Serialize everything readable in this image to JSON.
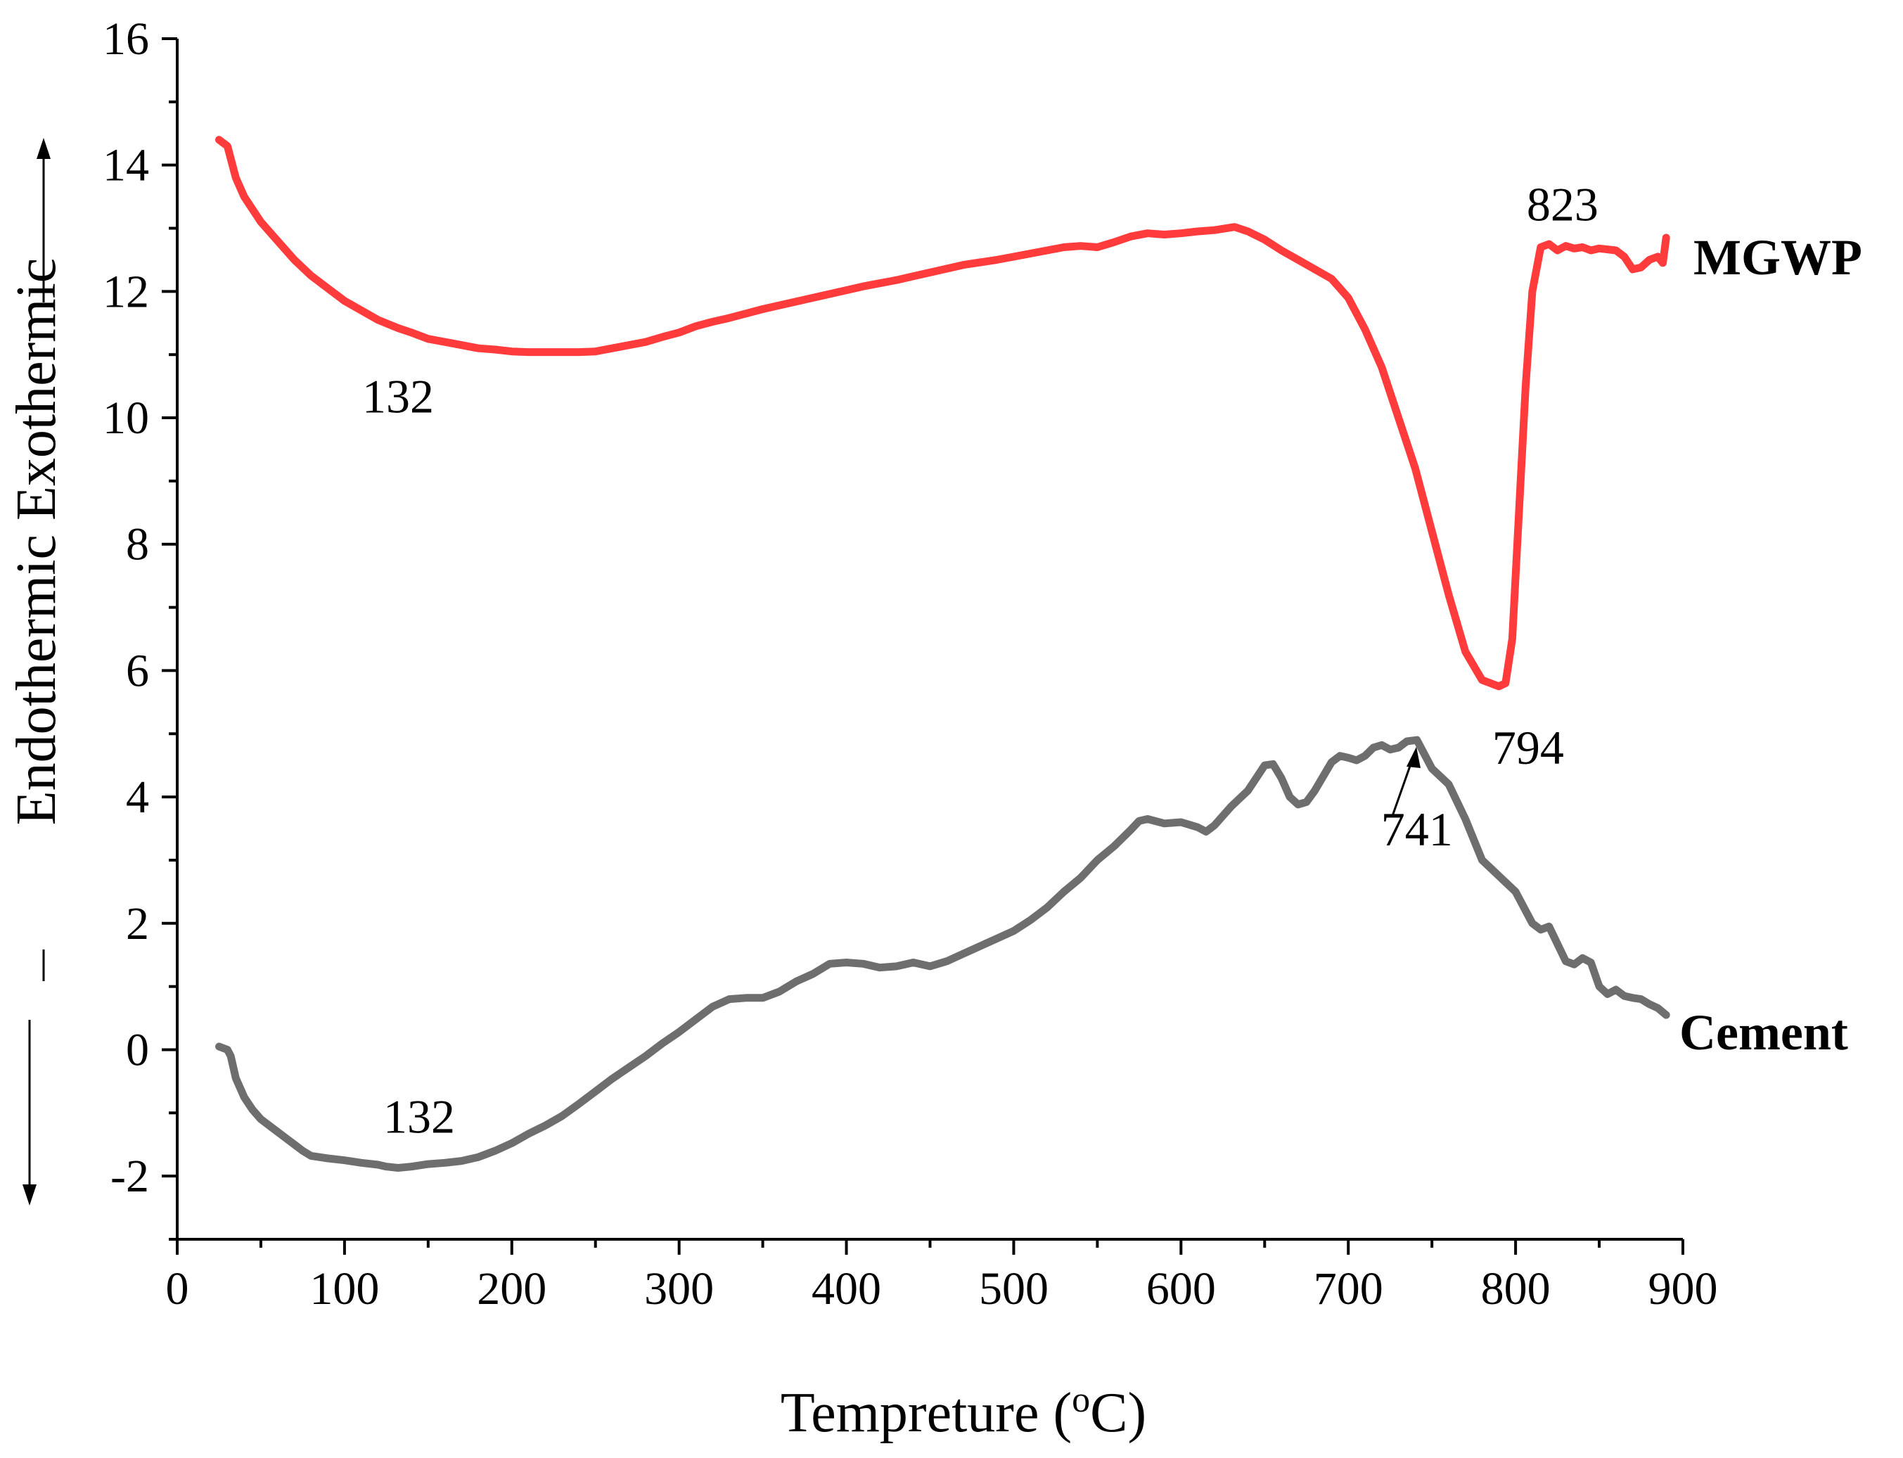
{
  "chart_data": {
    "type": "line",
    "title": "",
    "xlabel": "Tempreture (",
    "xlabel_super": "o",
    "xlabel_end": "C)",
    "ylabel": "Endothermic Exothermic",
    "xlim": [
      0,
      900
    ],
    "ylim": [
      -3,
      16
    ],
    "xticks": [
      0,
      100,
      200,
      300,
      400,
      500,
      600,
      700,
      800,
      900
    ],
    "yticks": [
      -2,
      0,
      2,
      4,
      6,
      8,
      10,
      12,
      14,
      16
    ],
    "ytick_labels": [
      "-2",
      "0",
      "2",
      "4",
      "6",
      "8",
      "10",
      "12",
      "14",
      "16"
    ],
    "grid": false,
    "series": [
      {
        "name": "MGWP",
        "color": "#ff3b3b",
        "x": [
          25,
          30,
          35,
          40,
          50,
          60,
          70,
          80,
          90,
          100,
          110,
          120,
          132,
          140,
          150,
          160,
          170,
          180,
          190,
          200,
          210,
          220,
          230,
          240,
          250,
          260,
          270,
          280,
          290,
          300,
          310,
          320,
          330,
          340,
          350,
          360,
          370,
          380,
          390,
          400,
          410,
          420,
          430,
          440,
          450,
          460,
          470,
          480,
          490,
          500,
          510,
          520,
          530,
          540,
          550,
          560,
          570,
          580,
          590,
          600,
          610,
          620,
          632,
          640,
          650,
          660,
          670,
          680,
          690,
          700,
          710,
          720,
          730,
          740,
          750,
          760,
          770,
          780,
          785,
          790,
          794,
          798,
          802,
          806,
          810,
          815,
          820,
          825,
          830,
          835,
          840,
          845,
          850,
          860,
          865,
          870,
          875,
          880,
          885,
          888,
          890
        ],
        "values": [
          14.4,
          14.3,
          13.8,
          13.5,
          13.1,
          12.8,
          12.5,
          12.25,
          12.05,
          11.85,
          11.7,
          11.55,
          11.42,
          11.35,
          11.25,
          11.2,
          11.15,
          11.1,
          11.08,
          11.05,
          11.04,
          11.04,
          11.04,
          11.04,
          11.05,
          11.1,
          11.15,
          11.2,
          11.28,
          11.35,
          11.45,
          11.52,
          11.58,
          11.65,
          11.72,
          11.78,
          11.84,
          11.9,
          11.96,
          12.02,
          12.08,
          12.13,
          12.18,
          12.24,
          12.3,
          12.36,
          12.42,
          12.46,
          12.5,
          12.55,
          12.6,
          12.65,
          12.7,
          12.72,
          12.7,
          12.78,
          12.87,
          12.92,
          12.9,
          12.92,
          12.95,
          12.97,
          13.02,
          12.95,
          12.82,
          12.65,
          12.5,
          12.35,
          12.2,
          11.9,
          11.4,
          10.8,
          10.0,
          9.2,
          8.2,
          7.2,
          6.3,
          5.85,
          5.8,
          5.75,
          5.8,
          6.5,
          8.5,
          10.5,
          12.0,
          12.7,
          12.75,
          12.65,
          12.72,
          12.68,
          12.7,
          12.65,
          12.68,
          12.65,
          12.55,
          12.35,
          12.38,
          12.5,
          12.55,
          12.45,
          12.85
        ]
      },
      {
        "name": "Cement",
        "color": "#6e6e6e",
        "x": [
          25,
          30,
          32,
          35,
          40,
          45,
          50,
          55,
          60,
          65,
          70,
          75,
          80,
          90,
          100,
          110,
          120,
          125,
          132,
          140,
          150,
          160,
          170,
          180,
          190,
          200,
          210,
          220,
          230,
          240,
          250,
          260,
          270,
          280,
          290,
          300,
          310,
          320,
          330,
          340,
          350,
          360,
          370,
          380,
          390,
          400,
          410,
          420,
          430,
          440,
          450,
          460,
          470,
          480,
          490,
          500,
          510,
          520,
          530,
          540,
          550,
          560,
          570,
          575,
          580,
          590,
          600,
          610,
          615,
          620,
          630,
          640,
          650,
          655,
          660,
          665,
          670,
          675,
          680,
          690,
          695,
          700,
          705,
          710,
          715,
          720,
          725,
          730,
          735,
          741,
          745,
          750,
          760,
          770,
          780,
          790,
          800,
          810,
          815,
          820,
          830,
          835,
          840,
          845,
          850,
          855,
          860,
          865,
          870,
          875,
          880,
          885,
          890
        ],
        "values": [
          0.05,
          0.0,
          -0.1,
          -0.45,
          -0.75,
          -0.95,
          -1.1,
          -1.2,
          -1.3,
          -1.4,
          -1.5,
          -1.6,
          -1.68,
          -1.72,
          -1.75,
          -1.79,
          -1.82,
          -1.85,
          -1.87,
          -1.85,
          -1.81,
          -1.79,
          -1.76,
          -1.7,
          -1.6,
          -1.48,
          -1.33,
          -1.2,
          -1.05,
          -0.86,
          -0.66,
          -0.46,
          -0.28,
          -0.1,
          0.1,
          0.28,
          0.48,
          0.68,
          0.8,
          0.82,
          0.82,
          0.92,
          1.08,
          1.2,
          1.36,
          1.38,
          1.36,
          1.3,
          1.32,
          1.38,
          1.32,
          1.4,
          1.52,
          1.64,
          1.76,
          1.88,
          2.05,
          2.25,
          2.5,
          2.72,
          3.0,
          3.22,
          3.48,
          3.62,
          3.65,
          3.58,
          3.6,
          3.52,
          3.45,
          3.55,
          3.85,
          4.1,
          4.5,
          4.52,
          4.3,
          4.0,
          3.88,
          3.92,
          4.1,
          4.55,
          4.65,
          4.62,
          4.58,
          4.65,
          4.78,
          4.82,
          4.75,
          4.78,
          4.88,
          4.9,
          4.7,
          4.45,
          4.2,
          3.65,
          3.0,
          2.75,
          2.5,
          2.0,
          1.9,
          1.95,
          1.4,
          1.35,
          1.45,
          1.38,
          1.0,
          0.88,
          0.95,
          0.85,
          0.82,
          0.8,
          0.72,
          0.66,
          0.55
        ]
      }
    ],
    "annotations": [
      {
        "text": "132",
        "series": "MGWP",
        "x": 132,
        "y": 11.42
      },
      {
        "text": "823",
        "series": "MGWP",
        "x": 823,
        "y": 12.72
      },
      {
        "text": "794",
        "series": "MGWP",
        "x": 794,
        "y": 5.75
      },
      {
        "text": "132",
        "series": "Cement",
        "x": 132,
        "y": -1.87
      },
      {
        "text": "741",
        "series": "Cement",
        "x": 741,
        "y": 4.9
      }
    ]
  }
}
